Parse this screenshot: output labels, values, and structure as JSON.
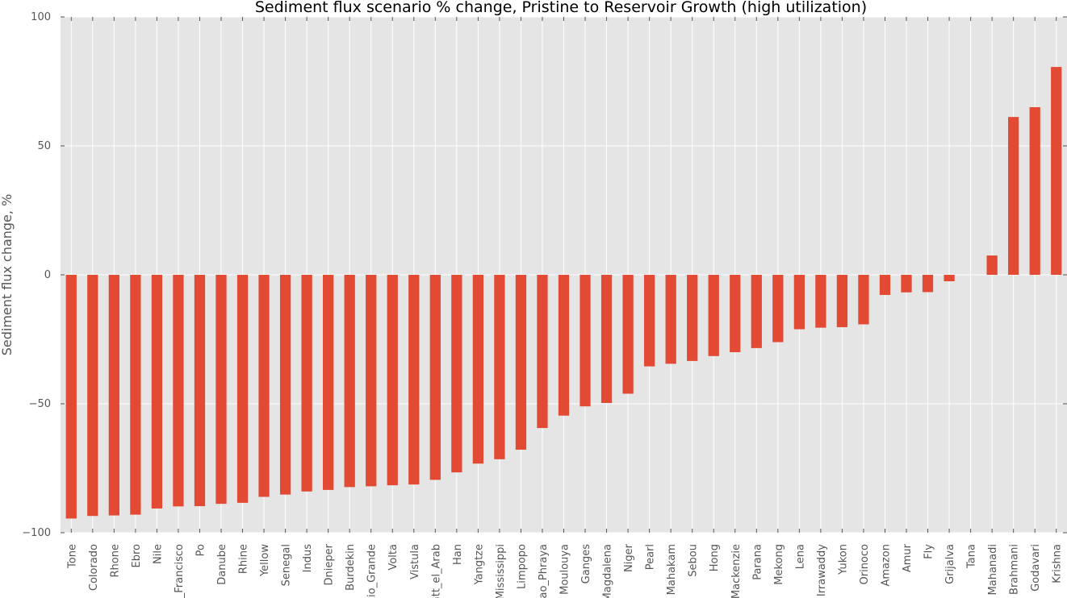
{
  "chart_data": {
    "type": "bar",
    "title": "Sediment flux scenario % change, Pristine to Reservoir Growth (high utilization)",
    "xlabel": "",
    "ylabel": "Sediment flux change, %",
    "ylim": [
      -100,
      100
    ],
    "yticks": [
      -100,
      -50,
      0,
      50,
      100
    ],
    "ytick_labels": [
      "−100",
      "−50",
      "0",
      "50",
      "100"
    ],
    "grid": true,
    "legend": "none",
    "categories": [
      "Tone",
      "Colorado",
      "Rhone",
      "Ebro",
      "Nile",
      "Sao_Francisco",
      "Po",
      "Danube",
      "Rhine",
      "Yellow",
      "Senegal",
      "Indus",
      "Dnieper",
      "Burdekin",
      "Rio_Grande",
      "Volta",
      "Vistula",
      "Shatt_el_Arab",
      "Han",
      "Yangtze",
      "Mississippi",
      "Limpopo",
      "Chao_Phraya",
      "Moulouya",
      "Ganges",
      "Magdalena",
      "Niger",
      "Pearl",
      "Mahakam",
      "Sebou",
      "Hong",
      "Mackenzie",
      "Parana",
      "Mekong",
      "Lena",
      "Irrawaddy",
      "Yukon",
      "Orinoco",
      "Amazon",
      "Amur",
      "Fly",
      "Grijalva",
      "Tana",
      "Mahanadi",
      "Brahmani",
      "Godavari",
      "Krishna"
    ],
    "values": [
      -94.5,
      -93.5,
      -93.3,
      -93.0,
      -90.6,
      -89.8,
      -89.7,
      -88.8,
      -88.4,
      -86.1,
      -85.2,
      -84.0,
      -83.4,
      -82.3,
      -82.0,
      -81.6,
      -81.3,
      -79.5,
      -76.6,
      -73.2,
      -71.5,
      -67.8,
      -59.4,
      -54.6,
      -51.0,
      -49.7,
      -46.1,
      -35.5,
      -34.5,
      -33.4,
      -31.5,
      -30.0,
      -28.4,
      -26.1,
      -21.1,
      -20.5,
      -20.3,
      -19.2,
      -7.8,
      -6.8,
      -6.7,
      -2.5,
      0.0,
      7.5,
      61.2,
      65.0,
      80.6
    ],
    "bar_color": "#E24A33",
    "plot_bg_color": "#E5E5E5",
    "grid_color": "#FFFFFF"
  }
}
